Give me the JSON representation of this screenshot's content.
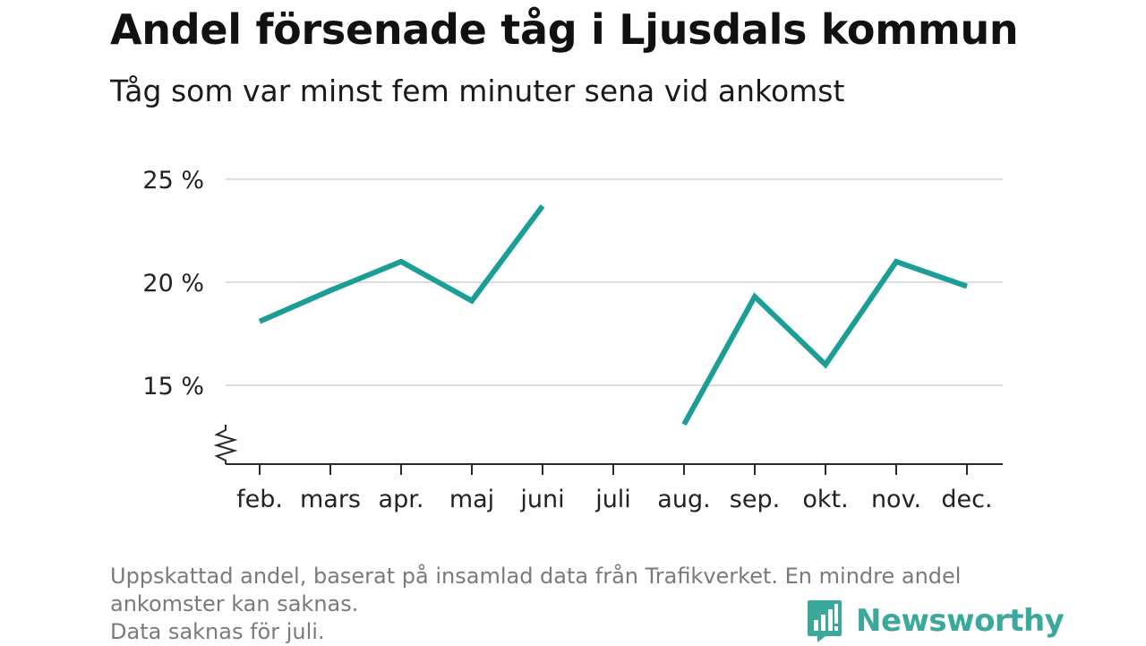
{
  "header": {
    "title": "Andel försenade tåg i Ljusdals kommun",
    "subtitle": "Tåg som var minst fem minuter sena vid ankomst"
  },
  "chart_data": {
    "type": "line",
    "categories": [
      "feb.",
      "mars",
      "apr.",
      "maj",
      "juni",
      "juli",
      "aug.",
      "sep.",
      "okt.",
      "nov.",
      "dec."
    ],
    "series": [
      {
        "values": [
          18.1,
          19.6,
          21.0,
          19.1,
          23.7,
          null,
          13.1,
          19.3,
          16.0,
          21.0,
          19.8
        ],
        "color": "#1a9e96"
      }
    ],
    "yticks": [
      15,
      20,
      25
    ],
    "ytick_labels": [
      "15 %",
      "20 %",
      "25 %"
    ],
    "ylim": [
      11.2,
      25
    ],
    "y_axis_break": true,
    "grid": true,
    "legend": "none"
  },
  "footer": {
    "note_line1": "Uppskattad andel, baserat på insamlad data från Trafikverket. En mindre andel",
    "note_line2": "ankomster kan saknas.",
    "note_line3": "Data saknas för juli.",
    "brand": "Newsworthy",
    "brand_icon": "newsworthy-bar-chart-icon",
    "brand_color": "#3aa89a"
  }
}
